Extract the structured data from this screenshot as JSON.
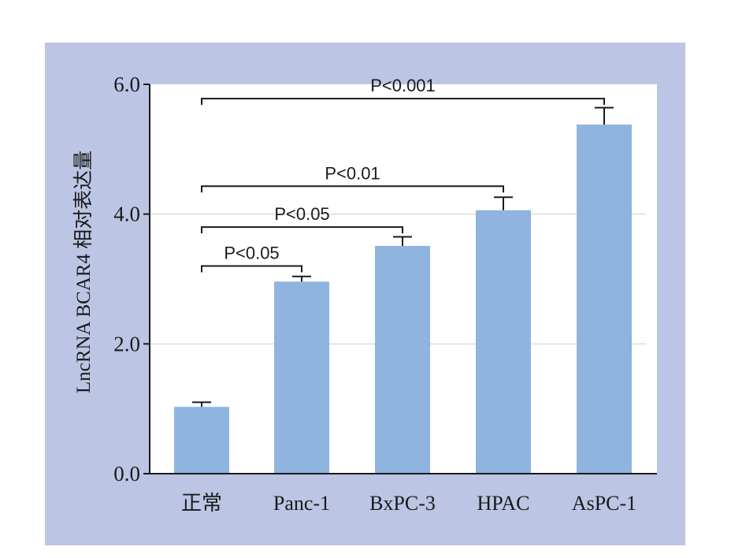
{
  "chart_data": {
    "type": "bar",
    "title": "",
    "xlabel": "",
    "ylabel": "LncRNA BCAR4 相对表达量",
    "categories": [
      "正常",
      "Panc-1",
      "BxPC-3",
      "HPAC",
      "AsPC-1"
    ],
    "values": [
      1.03,
      2.96,
      3.51,
      4.06,
      5.38
    ],
    "errors": [
      0.07,
      0.08,
      0.14,
      0.2,
      0.26
    ],
    "ylim": [
      0,
      6
    ],
    "yticks": [
      0,
      2,
      4,
      6
    ],
    "ytick_labels": [
      "0.0",
      "2.0",
      "4.0",
      "6.0"
    ],
    "grid": true,
    "legend": "none",
    "comparisons": [
      {
        "from": 0,
        "to": 1,
        "label": "P<0.05",
        "y": 3.2
      },
      {
        "from": 0,
        "to": 2,
        "label": "P<0.05",
        "y": 3.8
      },
      {
        "from": 0,
        "to": 3,
        "label": "P<0.01",
        "y": 4.43
      },
      {
        "from": 0,
        "to": 4,
        "label": "P<0.001",
        "y": 5.78
      }
    ]
  },
  "colors": {
    "background": "#bcc5e4",
    "plot_area": "#ffffff",
    "bar": "#8fb4e0",
    "axis": "#1a1a1a",
    "grid": "#e3e3e3"
  }
}
